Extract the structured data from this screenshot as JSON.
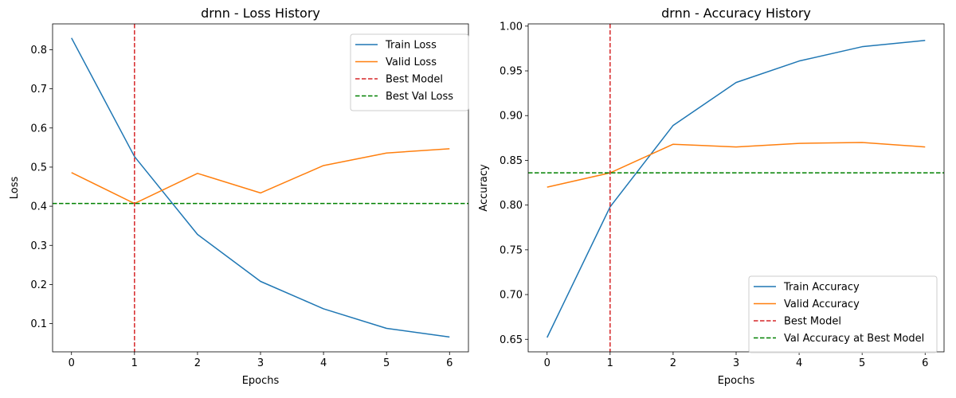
{
  "chart_data": [
    {
      "type": "line",
      "title": "drnn - Loss History",
      "xlabel": "Epochs",
      "ylabel": "Loss",
      "x": [
        0,
        1,
        2,
        3,
        4,
        5,
        6
      ],
      "xticks": [
        "0",
        "1",
        "2",
        "3",
        "4",
        "5",
        "6"
      ],
      "yticks": [
        "0.1",
        "0.2",
        "0.3",
        "0.4",
        "0.5",
        "0.6",
        "0.7",
        "0.8"
      ],
      "xlim": [
        -0.3,
        6.3
      ],
      "ylim": [
        0.028,
        0.866
      ],
      "series": [
        {
          "name": "Train Loss",
          "color": "#1f77b4",
          "style": "solid",
          "values": [
            0.83,
            0.527,
            0.328,
            0.208,
            0.138,
            0.088,
            0.066
          ]
        },
        {
          "name": "Valid Loss",
          "color": "#ff7f0e",
          "style": "solid",
          "values": [
            0.486,
            0.407,
            0.484,
            0.434,
            0.504,
            0.536,
            0.547
          ]
        }
      ],
      "reference_lines": [
        {
          "name": "Best Model",
          "color": "#d62728",
          "orientation": "vertical",
          "value": 1
        },
        {
          "name": "Best Val Loss",
          "color": "#008000",
          "orientation": "horizontal",
          "value": 0.407
        }
      ],
      "legend_position": "upper right",
      "grid": false
    },
    {
      "type": "line",
      "title": "drnn - Accuracy History",
      "xlabel": "Epochs",
      "ylabel": "Accuracy",
      "x": [
        0,
        1,
        2,
        3,
        4,
        5,
        6
      ],
      "xticks": [
        "0",
        "1",
        "2",
        "3",
        "4",
        "5",
        "6"
      ],
      "yticks": [
        "0.65",
        "0.70",
        "0.75",
        "0.80",
        "0.85",
        "0.90",
        "0.95",
        "1.00"
      ],
      "xlim": [
        -0.3,
        6.3
      ],
      "ylim": [
        0.636,
        1.0025
      ],
      "series": [
        {
          "name": "Train Accuracy",
          "color": "#1f77b4",
          "style": "solid",
          "values": [
            0.652,
            0.798,
            0.889,
            0.937,
            0.961,
            0.977,
            0.984
          ]
        },
        {
          "name": "Valid Accuracy",
          "color": "#ff7f0e",
          "style": "solid",
          "values": [
            0.82,
            0.836,
            0.868,
            0.865,
            0.869,
            0.87,
            0.865
          ]
        }
      ],
      "reference_lines": [
        {
          "name": "Best Model",
          "color": "#d62728",
          "orientation": "vertical",
          "value": 1
        },
        {
          "name": "Val Accuracy at Best Model",
          "color": "#008000",
          "orientation": "horizontal",
          "value": 0.836
        }
      ],
      "legend_position": "lower right",
      "grid": false
    }
  ]
}
